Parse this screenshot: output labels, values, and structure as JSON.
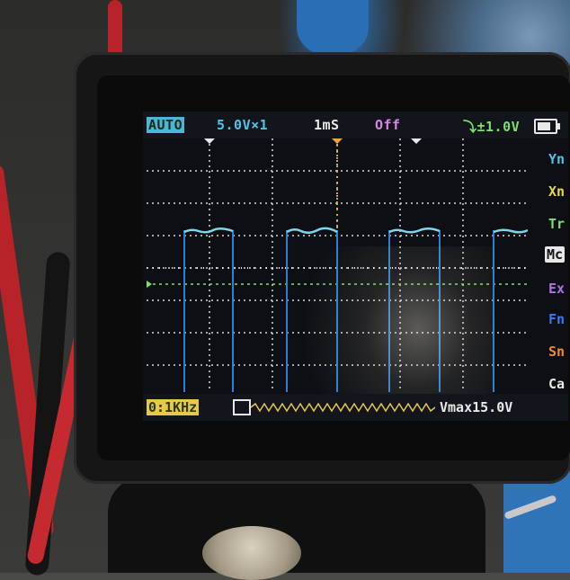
{
  "scope": {
    "top_bar": {
      "mode": "AUTO",
      "volt_div": "5.0V×1",
      "time_div": "1mS",
      "coupling": "Off",
      "trigger": "⤵±1.0V"
    },
    "menu": {
      "items": [
        "Yn",
        "Xn",
        "Tr",
        "Mc",
        "Ex",
        "Fn",
        "Sn",
        "Ca"
      ]
    },
    "bottom_bar": {
      "frequency": "0:1KHz",
      "vmax": "Vmax15.0V"
    },
    "colors": {
      "trace": "#7fd6ec",
      "pulse_edge": "#2f7fd0",
      "grid": "#d8d8d8",
      "ground_marker": "#7fe06a",
      "trigger_marker": "#f0a830",
      "accent_bottom": "#e8c84a"
    },
    "waveform": {
      "type": "square",
      "frequency_khz": 1,
      "vmax_v": 15.0
    }
  }
}
